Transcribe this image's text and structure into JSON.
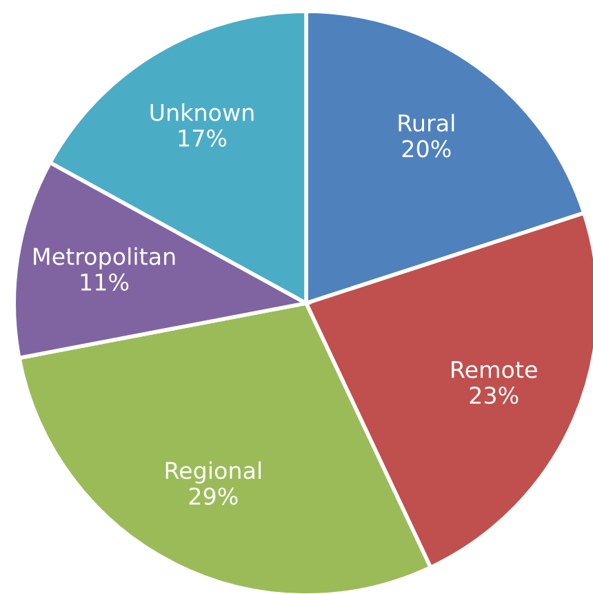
{
  "chart_data": {
    "type": "pie",
    "categories": [
      "Rural",
      "Remote",
      "Regional",
      "Metropolitan",
      "Unknown"
    ],
    "values": [
      20,
      23,
      29,
      11,
      17
    ],
    "value_labels": [
      "20%",
      "23%",
      "29%",
      "11%",
      "17%"
    ],
    "colors": [
      "#4f81bd",
      "#c0504d",
      "#9bbb59",
      "#8064a2",
      "#4bacc6"
    ]
  }
}
